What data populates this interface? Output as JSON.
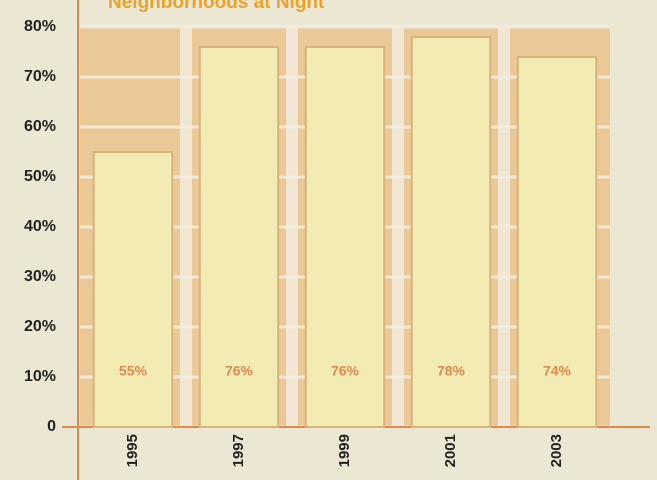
{
  "chart_data": {
    "type": "bar",
    "title": "Neighborhoods at Night",
    "categories": [
      "1995",
      "1997",
      "1999",
      "2001",
      "2003"
    ],
    "values": [
      55,
      76,
      76,
      78,
      74
    ],
    "value_labels": [
      "55%",
      "76%",
      "76%",
      "78%",
      "74%"
    ],
    "color": "#f2ebb4",
    "ylim": [
      0,
      80
    ],
    "yticks": [
      0,
      {
        "value": 10,
        "label": "10%"
      },
      {
        "value": 20,
        "label": "20%"
      },
      {
        "value": 30,
        "label": "30%"
      },
      {
        "value": 40,
        "label": "40%"
      },
      {
        "value": 50,
        "label": "50%"
      },
      {
        "value": 60,
        "label": "60%"
      },
      {
        "value": 70,
        "label": "70%"
      },
      {
        "value": 80,
        "label": "80%"
      }
    ],
    "grid": true
  }
}
